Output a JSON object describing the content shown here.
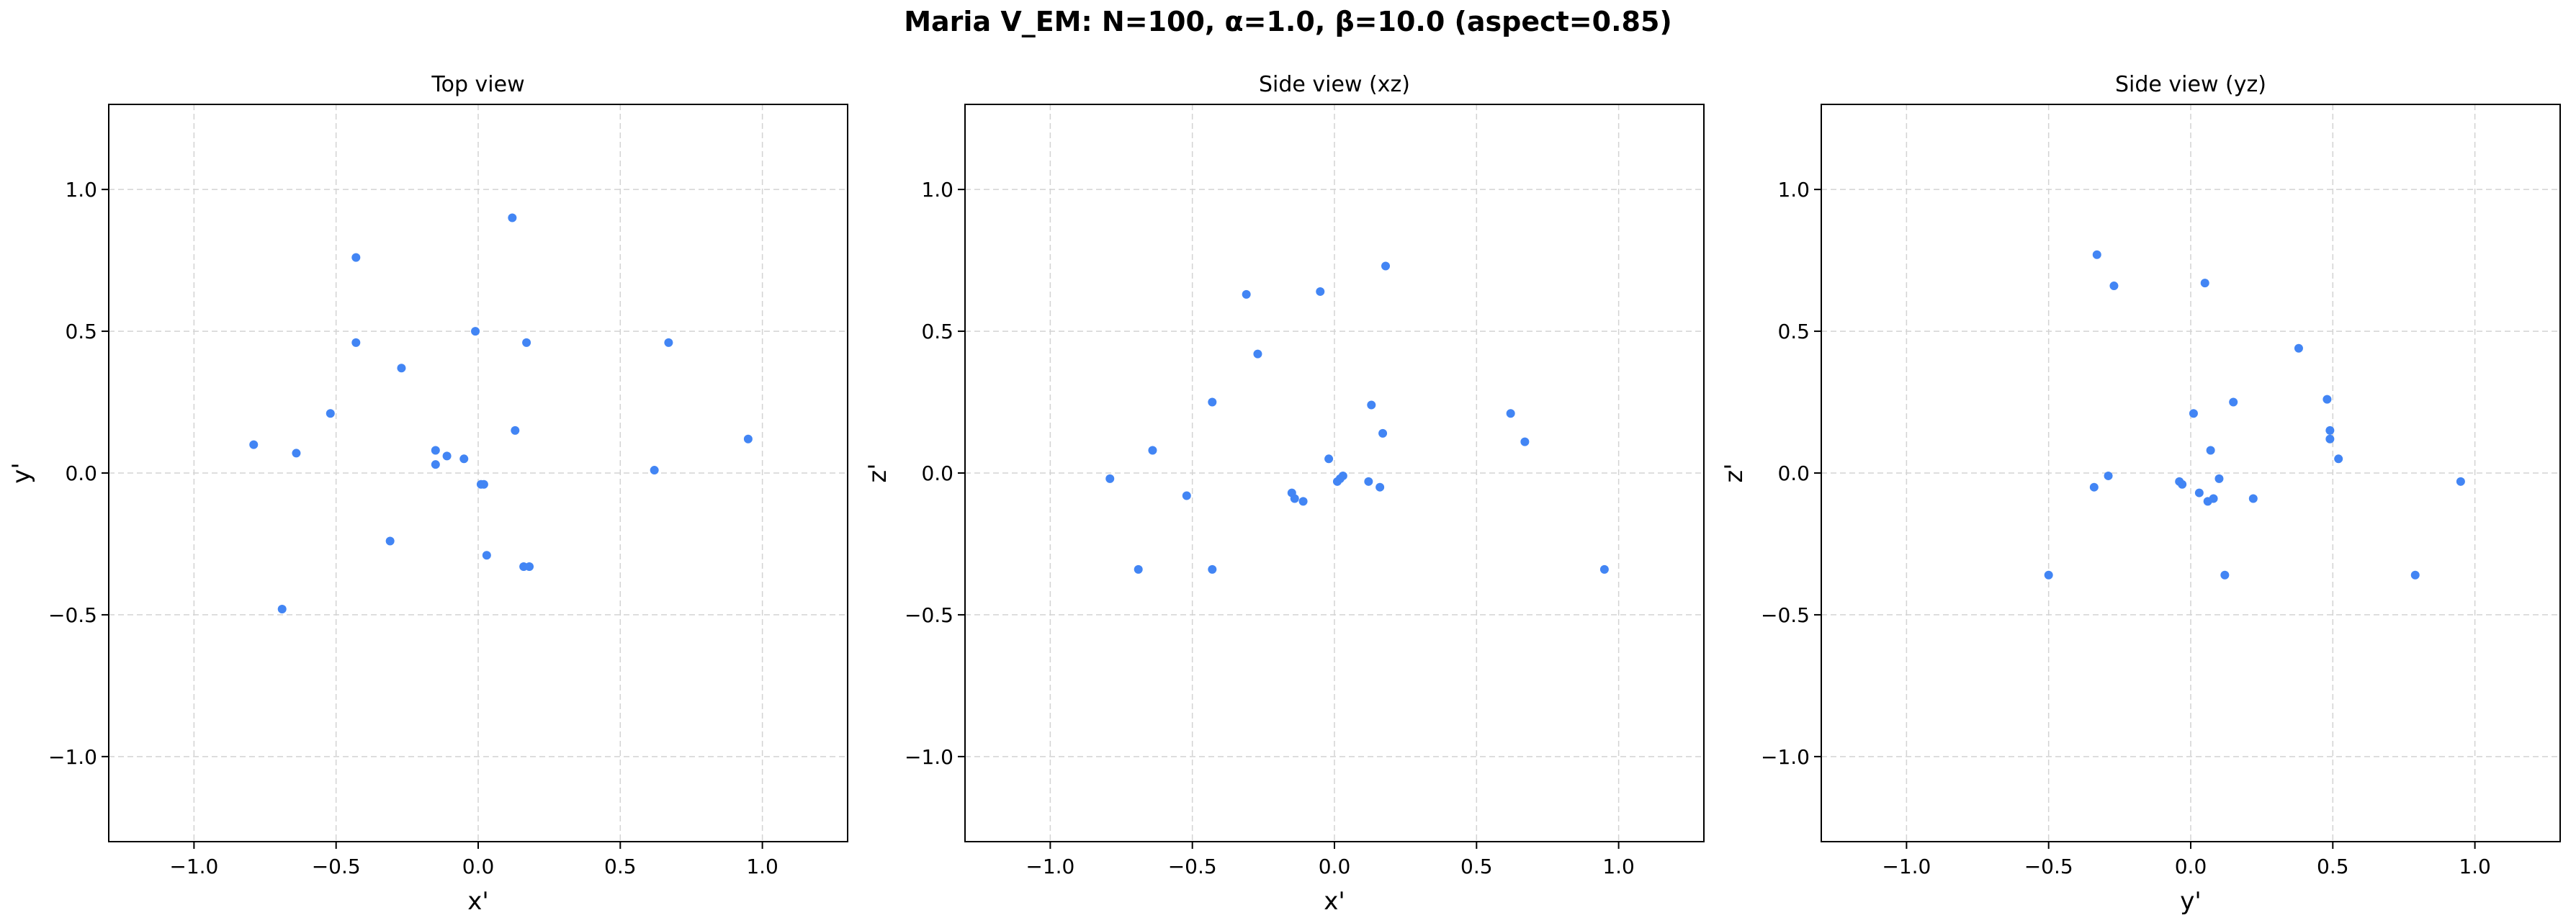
{
  "title": "Maria V_EM: N=100, α=1.0, β=10.0  (aspect=0.85)",
  "colors": {
    "points": "#4285f4",
    "grid": "#d3d3d3"
  },
  "chart_data": [
    {
      "type": "scatter",
      "title": "Top view",
      "xlabel": "x'",
      "ylabel": "y'",
      "xlim": [
        -1.3,
        1.3
      ],
      "ylim": [
        -1.3,
        1.3
      ],
      "xticks": [
        -1.0,
        -0.5,
        0.0,
        0.5,
        1.0
      ],
      "yticks": [
        -1.0,
        -0.5,
        0.0,
        0.5,
        1.0
      ],
      "tick_labels": [
        "−1.0",
        "−0.5",
        "0.0",
        "0.5",
        "1.0"
      ],
      "grid": true,
      "points": [
        [
          0.12,
          0.9
        ],
        [
          -0.43,
          0.76
        ],
        [
          -0.43,
          0.46
        ],
        [
          -0.27,
          0.37
        ],
        [
          -0.01,
          0.5
        ],
        [
          0.17,
          0.46
        ],
        [
          0.67,
          0.46
        ],
        [
          0.13,
          0.15
        ],
        [
          -0.52,
          0.21
        ],
        [
          -0.79,
          0.1
        ],
        [
          -0.64,
          0.07
        ],
        [
          -0.15,
          0.08
        ],
        [
          -0.11,
          0.06
        ],
        [
          -0.05,
          0.05
        ],
        [
          -0.15,
          0.03
        ],
        [
          0.01,
          -0.04
        ],
        [
          0.02,
          -0.04
        ],
        [
          0.62,
          0.01
        ],
        [
          0.95,
          0.12
        ],
        [
          -0.31,
          -0.24
        ],
        [
          0.03,
          -0.29
        ],
        [
          0.16,
          -0.33
        ],
        [
          0.18,
          -0.33
        ],
        [
          -0.69,
          -0.48
        ]
      ]
    },
    {
      "type": "scatter",
      "title": "Side view (xz)",
      "xlabel": "x'",
      "ylabel": "z'",
      "xlim": [
        -1.3,
        1.3
      ],
      "ylim": [
        -1.3,
        1.3
      ],
      "xticks": [
        -1.0,
        -0.5,
        0.0,
        0.5,
        1.0
      ],
      "yticks": [
        -1.0,
        -0.5,
        0.0,
        0.5,
        1.0
      ],
      "tick_labels": [
        "−1.0",
        "−0.5",
        "0.0",
        "0.5",
        "1.0"
      ],
      "grid": true,
      "points": [
        [
          0.18,
          0.73
        ],
        [
          -0.31,
          0.63
        ],
        [
          -0.05,
          0.64
        ],
        [
          -0.27,
          0.42
        ],
        [
          -0.43,
          0.25
        ],
        [
          0.13,
          0.24
        ],
        [
          0.62,
          0.21
        ],
        [
          0.67,
          0.11
        ],
        [
          0.17,
          0.14
        ],
        [
          -0.64,
          0.08
        ],
        [
          -0.79,
          -0.02
        ],
        [
          -0.02,
          0.05
        ],
        [
          0.01,
          -0.03
        ],
        [
          0.02,
          -0.02
        ],
        [
          0.03,
          -0.01
        ],
        [
          0.12,
          -0.03
        ],
        [
          0.16,
          -0.05
        ],
        [
          -0.52,
          -0.08
        ],
        [
          -0.15,
          -0.07
        ],
        [
          -0.14,
          -0.09
        ],
        [
          -0.11,
          -0.1
        ],
        [
          -0.69,
          -0.34
        ],
        [
          -0.43,
          -0.34
        ],
        [
          0.95,
          -0.34
        ]
      ]
    },
    {
      "type": "scatter",
      "title": "Side view (yz)",
      "xlabel": "y'",
      "ylabel": "z'",
      "xlim": [
        -1.3,
        1.3
      ],
      "ylim": [
        -1.3,
        1.3
      ],
      "xticks": [
        -1.0,
        -0.5,
        0.0,
        0.5,
        1.0
      ],
      "yticks": [
        -1.0,
        -0.5,
        0.0,
        0.5,
        1.0
      ],
      "tick_labels": [
        "−1.0",
        "−0.5",
        "0.0",
        "0.5",
        "1.0"
      ],
      "grid": true,
      "points": [
        [
          -0.33,
          0.77
        ],
        [
          -0.27,
          0.66
        ],
        [
          0.05,
          0.67
        ],
        [
          0.38,
          0.44
        ],
        [
          0.48,
          0.26
        ],
        [
          0.15,
          0.25
        ],
        [
          0.01,
          0.21
        ],
        [
          0.49,
          0.15
        ],
        [
          0.49,
          0.12
        ],
        [
          0.52,
          0.05
        ],
        [
          0.07,
          0.08
        ],
        [
          -0.29,
          -0.01
        ],
        [
          -0.04,
          -0.03
        ],
        [
          -0.03,
          -0.04
        ],
        [
          0.1,
          -0.02
        ],
        [
          -0.34,
          -0.05
        ],
        [
          0.03,
          -0.07
        ],
        [
          0.06,
          -0.1
        ],
        [
          0.08,
          -0.09
        ],
        [
          0.22,
          -0.09
        ],
        [
          0.95,
          -0.03
        ],
        [
          -0.5,
          -0.36
        ],
        [
          0.12,
          -0.36
        ],
        [
          0.79,
          -0.36
        ]
      ]
    }
  ]
}
